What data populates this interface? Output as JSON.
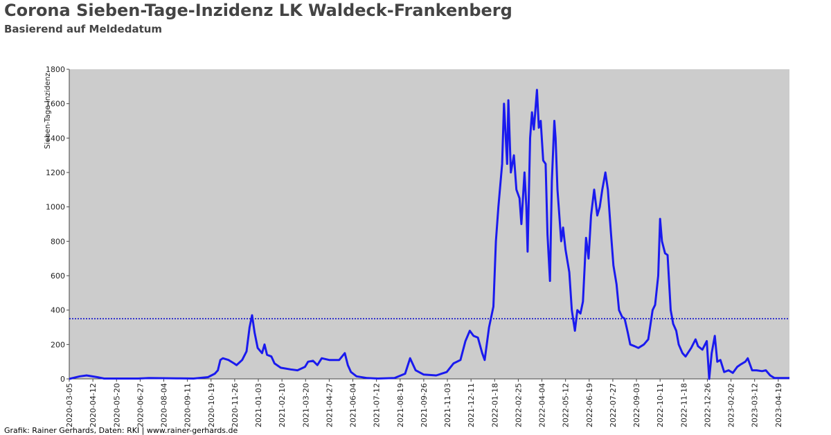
{
  "chart_data": {
    "type": "line",
    "title": "Corona Sieben-Tage-Inzidenz LK Waldeck-Frankenberg",
    "subtitle": "Basierend auf Meldedatum",
    "y_label": "Sieben-Tage-Inzidenz",
    "footer": "Grafik: Rainer Gerhards, Daten: RKI | www.rainer-gerhards.de",
    "background": "#cccccc",
    "reference_line": {
      "value": 350,
      "color": "#0000cc"
    },
    "x": [
      "2020-03-05",
      "2020-03-22",
      "2020-04-02",
      "2020-04-19",
      "2020-04-30",
      "2020-06-24",
      "2020-07-11",
      "2020-08-30",
      "2020-09-21",
      "2020-10-14",
      "2020-10-25",
      "2020-10-30",
      "2020-11-03",
      "2020-11-07",
      "2020-11-16",
      "2020-11-25",
      "2020-11-29",
      "2020-12-08",
      "2020-12-15",
      "2020-12-20",
      "2020-12-24",
      "2020-12-28",
      "2021-01-02",
      "2021-01-09",
      "2021-01-13",
      "2021-01-17",
      "2021-01-24",
      "2021-01-29",
      "2021-02-08",
      "2021-02-24",
      "2021-03-07",
      "2021-03-19",
      "2021-03-24",
      "2021-04-01",
      "2021-04-08",
      "2021-04-15",
      "2021-04-27",
      "2021-05-13",
      "2021-05-22",
      "2021-05-27",
      "2021-06-01",
      "2021-06-10",
      "2021-06-27",
      "2021-07-14",
      "2021-08-10",
      "2021-08-27",
      "2021-09-04",
      "2021-09-13",
      "2021-09-26",
      "2021-10-16",
      "2021-11-02",
      "2021-11-13",
      "2021-11-24",
      "2021-12-02",
      "2021-12-09",
      "2021-12-15",
      "2021-12-22",
      "2021-12-29",
      "2022-01-02",
      "2022-01-09",
      "2022-01-16",
      "2022-01-20",
      "2022-01-24",
      "2022-01-30",
      "2022-02-02",
      "2022-02-07",
      "2022-02-09",
      "2022-02-13",
      "2022-02-18",
      "2022-02-22",
      "2022-02-27",
      "2022-03-02",
      "2022-03-07",
      "2022-03-10",
      "2022-03-12",
      "2022-03-16",
      "2022-03-19",
      "2022-03-22",
      "2022-03-27",
      "2022-03-30",
      "2022-04-02",
      "2022-04-06",
      "2022-04-10",
      "2022-04-13",
      "2022-04-17",
      "2022-04-20",
      "2022-04-24",
      "2022-04-26",
      "2022-04-29",
      "2022-05-05",
      "2022-05-08",
      "2022-05-12",
      "2022-05-18",
      "2022-05-22",
      "2022-05-27",
      "2022-05-31",
      "2022-06-05",
      "2022-06-09",
      "2022-06-14",
      "2022-06-18",
      "2022-06-22",
      "2022-06-27",
      "2022-07-02",
      "2022-07-06",
      "2022-07-10",
      "2022-07-15",
      "2022-07-19",
      "2022-07-24",
      "2022-07-28",
      "2022-08-02",
      "2022-08-06",
      "2022-08-11",
      "2022-08-15",
      "2022-08-20",
      "2022-08-24",
      "2022-08-31",
      "2022-09-06",
      "2022-09-15",
      "2022-09-22",
      "2022-09-29",
      "2022-10-03",
      "2022-10-08",
      "2022-10-11",
      "2022-10-14",
      "2022-10-19",
      "2022-10-23",
      "2022-10-28",
      "2022-11-01",
      "2022-11-06",
      "2022-11-10",
      "2022-11-16",
      "2022-11-21",
      "2022-11-30",
      "2022-12-07",
      "2022-12-11",
      "2022-12-18",
      "2022-12-25",
      "2022-12-29",
      "2023-01-02",
      "2023-01-07",
      "2023-01-11",
      "2023-01-16",
      "2023-01-22",
      "2023-01-29",
      "2023-02-05",
      "2023-02-12",
      "2023-02-18",
      "2023-02-25",
      "2023-03-01",
      "2023-03-08",
      "2023-03-15",
      "2023-03-24",
      "2023-03-30",
      "2023-04-06",
      "2023-04-13",
      "2023-04-26",
      "2023-05-07"
    ],
    "series": [
      {
        "name": "Sieben-Tage-Inzidenz",
        "color": "#1a1aee",
        "values": [
          0,
          15,
          20,
          10,
          2,
          2,
          5,
          3,
          2,
          10,
          30,
          50,
          110,
          120,
          110,
          90,
          80,
          110,
          160,
          300,
          370,
          270,
          180,
          150,
          200,
          140,
          130,
          90,
          65,
          55,
          50,
          70,
          100,
          105,
          80,
          120,
          110,
          110,
          150,
          80,
          40,
          15,
          5,
          2,
          5,
          30,
          120,
          50,
          25,
          20,
          40,
          90,
          110,
          220,
          280,
          250,
          240,
          150,
          110,
          300,
          420,
          800,
          1000,
          1250,
          1600,
          1250,
          1620,
          1200,
          1300,
          1100,
          1050,
          900,
          1200,
          1000,
          740,
          1400,
          1550,
          1450,
          1680,
          1460,
          1500,
          1270,
          1250,
          840,
          570,
          1150,
          1500,
          1400,
          1100,
          800,
          880,
          750,
          620,
          400,
          280,
          400,
          380,
          450,
          820,
          700,
          950,
          1100,
          950,
          1000,
          1100,
          1200,
          1100,
          850,
          660,
          550,
          400,
          360,
          350,
          270,
          200,
          190,
          180,
          200,
          230,
          400,
          430,
          600,
          930,
          800,
          730,
          720,
          400,
          320,
          280,
          200,
          150,
          130,
          180,
          230,
          190,
          170,
          220,
          0,
          150,
          250,
          100,
          110,
          40,
          50,
          35,
          70,
          85,
          100,
          120,
          50,
          50,
          45,
          50,
          20,
          5,
          5,
          5
        ]
      }
    ],
    "xlim": [
      "2020-03-05",
      "2023-05-07"
    ],
    "xticks": [
      "2020-03-05",
      "2020-04-12",
      "2020-05-20",
      "2020-06-27",
      "2020-08-04",
      "2020-09-11",
      "2020-10-19",
      "2020-11-26",
      "2021-01-03",
      "2021-02-10",
      "2021-03-20",
      "2021-04-27",
      "2021-06-04",
      "2021-07-12",
      "2021-08-19",
      "2021-09-26",
      "2021-11-03",
      "2021-12-11",
      "2022-01-18",
      "2022-02-25",
      "2022-04-04",
      "2022-05-12",
      "2022-06-19",
      "2022-07-27",
      "2022-09-03",
      "2022-10-11",
      "2022-11-18",
      "2022-12-26",
      "2023-02-02",
      "2023-03-12",
      "2023-04-19"
    ],
    "ylim": [
      0,
      1800
    ],
    "yticks": [
      0,
      200,
      400,
      600,
      800,
      1000,
      1200,
      1400,
      1600,
      1800
    ]
  }
}
